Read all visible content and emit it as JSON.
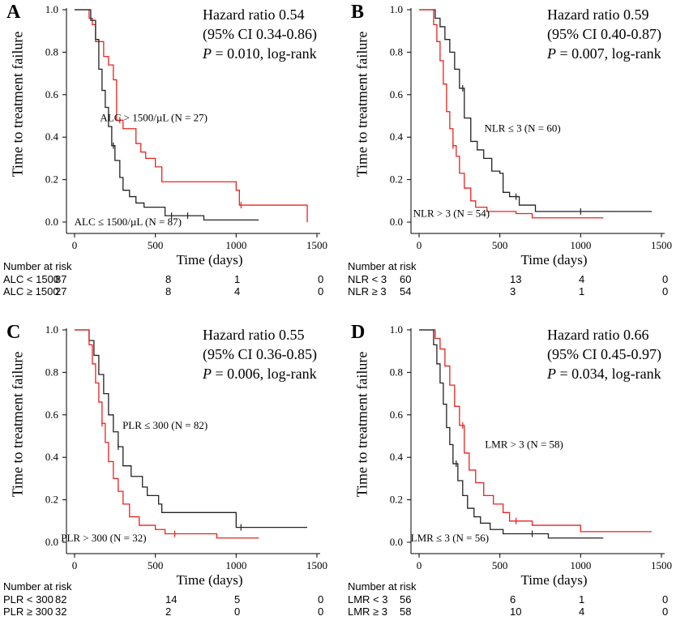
{
  "chart_data": [
    {
      "type": "line",
      "panel_letter": "A",
      "xlabel": "Time (days)",
      "ylabel": "Time to treatment failure",
      "xlim": [
        0,
        1500
      ],
      "ylim": [
        0,
        1.0
      ],
      "x_ticks": [
        "0",
        "500",
        "1000",
        "1500"
      ],
      "y_ticks": [
        "0.0",
        "0.2",
        "0.4",
        "0.6",
        "0.8",
        "1.0"
      ],
      "stats": {
        "hazard_ratio": "Hazard ratio 0.54",
        "ci": "(95% CI 0.34-0.86)",
        "p_prefix": "P",
        "p_rest": " = 0.010, log-rank"
      },
      "series": [
        {
          "name": "ALC > 1500/µL (N = 27)",
          "color": "#e8231f",
          "x": [
            0,
            70,
            90,
            110,
            130,
            180,
            210,
            240,
            260,
            300,
            380,
            410,
            440,
            500,
            540,
            1000,
            1020,
            1440
          ],
          "y": [
            1.0,
            1.0,
            0.96,
            0.93,
            0.85,
            0.78,
            0.74,
            0.67,
            0.48,
            0.44,
            0.37,
            0.33,
            0.3,
            0.26,
            0.19,
            0.15,
            0.08,
            0.0
          ],
          "censor_x": [
            280,
            1030
          ],
          "label_x": 490,
          "label_y": 0.49
        },
        {
          "name": "ALC ≤ 1500/µL (N = 87)",
          "color": "#222222",
          "x": [
            0,
            70,
            100,
            130,
            150,
            170,
            190,
            210,
            230,
            250,
            280,
            300,
            340,
            380,
            430,
            560,
            800,
            1140
          ],
          "y": [
            1.0,
            1.0,
            0.95,
            0.86,
            0.72,
            0.62,
            0.54,
            0.45,
            0.36,
            0.29,
            0.21,
            0.15,
            0.12,
            0.09,
            0.07,
            0.03,
            0.01,
            0.01
          ],
          "censor_x": [
            240,
            600,
            700
          ],
          "label_x": 330,
          "label_y": 0.0
        }
      ],
      "risk_table": {
        "title": "Number at risk",
        "rows": [
          {
            "label": "ALC < 1500",
            "values": [
              "87",
              "8",
              "1",
              "0"
            ]
          },
          {
            "label": "ALC ≥ 1500",
            "values": [
              "27",
              "8",
              "4",
              "0"
            ]
          }
        ]
      }
    },
    {
      "type": "line",
      "panel_letter": "B",
      "xlabel": "Time (days)",
      "ylabel": "Time to treatment failure",
      "xlim": [
        0,
        1500
      ],
      "ylim": [
        0,
        1.0
      ],
      "x_ticks": [
        "0",
        "500",
        "1000",
        "1500"
      ],
      "y_ticks": [
        "0.0",
        "0.2",
        "0.4",
        "0.6",
        "0.8",
        "1.0"
      ],
      "stats": {
        "hazard_ratio": "Hazard ratio 0.59",
        "ci": "(95% CI 0.40-0.87)",
        "p_prefix": "P",
        "p_rest": " = 0.007, log-rank"
      },
      "series": [
        {
          "name": "NLR ≤ 3 (N = 60)",
          "color": "#222222",
          "x": [
            0,
            70,
            100,
            130,
            160,
            190,
            220,
            250,
            280,
            320,
            360,
            400,
            450,
            500,
            520,
            560,
            620,
            720,
            1440
          ],
          "y": [
            1.0,
            1.0,
            0.96,
            0.92,
            0.86,
            0.8,
            0.72,
            0.63,
            0.49,
            0.38,
            0.34,
            0.3,
            0.24,
            0.23,
            0.14,
            0.12,
            0.08,
            0.05,
            0.05
          ],
          "censor_x": [
            270,
            600,
            1000
          ],
          "label_x": 640,
          "label_y": 0.44
        },
        {
          "name": "NLR > 3 (N = 54)",
          "color": "#e8231f",
          "x": [
            0,
            60,
            90,
            110,
            130,
            150,
            170,
            190,
            210,
            230,
            250,
            280,
            320,
            350,
            420,
            600,
            700,
            1140
          ],
          "y": [
            1.0,
            1.0,
            0.93,
            0.85,
            0.76,
            0.65,
            0.52,
            0.44,
            0.36,
            0.31,
            0.23,
            0.16,
            0.1,
            0.07,
            0.05,
            0.04,
            0.02,
            0.02
          ],
          "censor_x": [
            210
          ],
          "label_x": 200,
          "label_y": 0.04
        }
      ],
      "risk_table": {
        "title": "Number at risk",
        "rows": [
          {
            "label": "NLR < 3",
            "values": [
              "60",
              "13",
              "4",
              "0"
            ]
          },
          {
            "label": "NLR ≥ 3",
            "values": [
              "54",
              "3",
              "1",
              "0"
            ]
          }
        ]
      }
    },
    {
      "type": "line",
      "panel_letter": "C",
      "xlabel": "Time (days)",
      "ylabel": "Time to treatment failure",
      "xlim": [
        0,
        1500
      ],
      "ylim": [
        0,
        1.0
      ],
      "x_ticks": [
        "0",
        "500",
        "1000",
        "1500"
      ],
      "y_ticks": [
        "0.0",
        "0.2",
        "0.4",
        "0.6",
        "0.8",
        "1.0"
      ],
      "stats": {
        "hazard_ratio": "Hazard ratio 0.55",
        "ci": "(95% CI 0.36-0.85)",
        "p_prefix": "P",
        "p_rest": " = 0.006, log-rank"
      },
      "series": [
        {
          "name": "PLR ≤ 300 (N = 82)",
          "color": "#222222",
          "x": [
            0,
            60,
            90,
            120,
            150,
            180,
            210,
            240,
            270,
            300,
            350,
            420,
            450,
            520,
            540,
            1000,
            1440
          ],
          "y": [
            1.0,
            1.0,
            0.95,
            0.88,
            0.79,
            0.7,
            0.6,
            0.52,
            0.45,
            0.36,
            0.31,
            0.26,
            0.22,
            0.18,
            0.14,
            0.07,
            0.07
          ],
          "censor_x": [
            270,
            1030
          ],
          "label_x": 560,
          "label_y": 0.55
        },
        {
          "name": "PLR > 300 (N = 32)",
          "color": "#e8231f",
          "x": [
            0,
            60,
            90,
            110,
            130,
            150,
            170,
            190,
            210,
            240,
            270,
            300,
            340,
            400,
            500,
            560,
            880,
            1140
          ],
          "y": [
            1.0,
            1.0,
            0.93,
            0.84,
            0.75,
            0.66,
            0.56,
            0.47,
            0.38,
            0.3,
            0.24,
            0.18,
            0.12,
            0.08,
            0.06,
            0.04,
            0.02,
            0.02
          ],
          "censor_x": [
            170,
            620
          ],
          "label_x": 180,
          "label_y": 0.02
        }
      ],
      "risk_table": {
        "title": "Number at risk",
        "rows": [
          {
            "label": "PLR < 300",
            "values": [
              "82",
              "14",
              "5",
              "0"
            ]
          },
          {
            "label": "PLR ≥ 300",
            "values": [
              "32",
              "2",
              "0",
              "0"
            ]
          }
        ]
      }
    },
    {
      "type": "line",
      "panel_letter": "D",
      "xlabel": "Time (days)",
      "ylabel": "Time to treatment failure",
      "xlim": [
        0,
        1500
      ],
      "ylim": [
        0,
        1.0
      ],
      "x_ticks": [
        "0",
        "500",
        "1000",
        "1500"
      ],
      "y_ticks": [
        "0.0",
        "0.2",
        "0.4",
        "0.6",
        "0.8",
        "1.0"
      ],
      "stats": {
        "hazard_ratio": "Hazard ratio 0.66",
        "ci": "(95% CI 0.45-0.97)",
        "p_prefix": "P",
        "p_rest": " = 0.034, log-rank"
      },
      "series": [
        {
          "name": "LMR > 3 (N = 58)",
          "color": "#e8231f",
          "x": [
            0,
            70,
            100,
            130,
            160,
            190,
            220,
            250,
            280,
            310,
            350,
            400,
            460,
            520,
            560,
            700,
            1000,
            1440
          ],
          "y": [
            1.0,
            1.0,
            0.96,
            0.91,
            0.83,
            0.74,
            0.64,
            0.55,
            0.42,
            0.34,
            0.28,
            0.22,
            0.18,
            0.14,
            0.1,
            0.08,
            0.05,
            0.05
          ],
          "censor_x": [
            270,
            600
          ],
          "label_x": 650,
          "label_y": 0.46
        },
        {
          "name": "LMR ≤ 3 (N = 56)",
          "color": "#222222",
          "x": [
            0,
            60,
            90,
            110,
            130,
            150,
            170,
            190,
            210,
            240,
            270,
            300,
            340,
            380,
            440,
            520,
            800,
            1140
          ],
          "y": [
            1.0,
            1.0,
            0.93,
            0.84,
            0.75,
            0.65,
            0.54,
            0.46,
            0.37,
            0.29,
            0.22,
            0.16,
            0.12,
            0.09,
            0.06,
            0.04,
            0.02,
            0.02
          ],
          "censor_x": [
            230,
            700
          ],
          "label_x": 190,
          "label_y": 0.02
        }
      ],
      "risk_table": {
        "title": "Number at risk",
        "rows": [
          {
            "label": "LMR < 3",
            "values": [
              "56",
              "6",
              "1",
              "0"
            ]
          },
          {
            "label": "LMR ≥ 3",
            "values": [
              "58",
              "10",
              "4",
              "0"
            ]
          }
        ]
      }
    }
  ]
}
